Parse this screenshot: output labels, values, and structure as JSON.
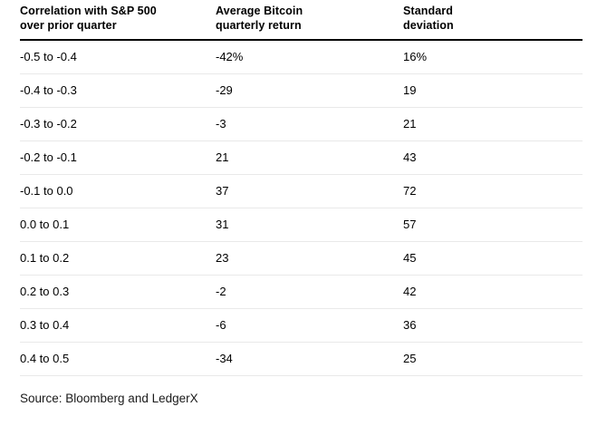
{
  "colors": {
    "background": "#ffffff",
    "text": "#000000",
    "header_rule": "#000000",
    "row_divider": "#e9e9e9"
  },
  "chart_data": {
    "type": "table",
    "columns": [
      {
        "line1": "Correlation with S&P 500",
        "line2": "over prior quarter"
      },
      {
        "line1": "Average Bitcoin",
        "line2": "quarterly return"
      },
      {
        "line1": "Standard",
        "line2": "deviation"
      }
    ],
    "rows": [
      [
        "-0.5 to -0.4",
        "-42%",
        "16%"
      ],
      [
        "-0.4 to -0.3",
        "-29",
        "19"
      ],
      [
        "-0.3 to -0.2",
        "-3",
        "21"
      ],
      [
        "-0.2 to -0.1",
        "21",
        "43"
      ],
      [
        "-0.1 to 0.0",
        "37",
        "72"
      ],
      [
        "0.0 to 0.1",
        "31",
        "57"
      ],
      [
        "0.1 to 0.2",
        "23",
        "45"
      ],
      [
        "0.2 to 0.3",
        "-2",
        "42"
      ],
      [
        "0.3 to 0.4",
        "-6",
        "36"
      ],
      [
        "0.4 to 0.5",
        "-34",
        "25"
      ]
    ],
    "categories": [
      "-0.5 to -0.4",
      "-0.4 to -0.3",
      "-0.3 to -0.2",
      "-0.2 to -0.1",
      "-0.1 to 0.0",
      "0.0 to 0.1",
      "0.1 to 0.2",
      "0.2 to 0.3",
      "0.3 to 0.4",
      "0.4 to 0.5"
    ],
    "series": [
      {
        "name": "Average Bitcoin quarterly return (%)",
        "values": [
          -42,
          -29,
          -3,
          21,
          37,
          31,
          23,
          -2,
          -6,
          -34
        ]
      },
      {
        "name": "Standard deviation (%)",
        "values": [
          16,
          19,
          21,
          43,
          72,
          57,
          45,
          42,
          36,
          25
        ]
      }
    ],
    "legend_position": "none",
    "grid": "horizontal-dividers"
  },
  "source": {
    "label": "Source: Bloomberg and LedgerX"
  }
}
